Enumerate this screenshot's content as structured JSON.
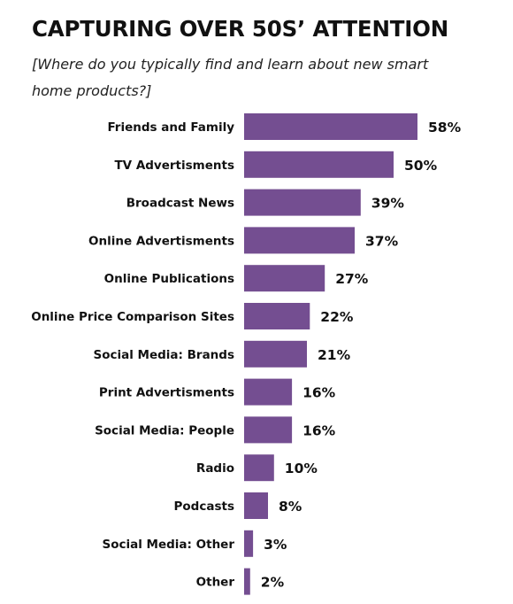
{
  "title": "CAPTURING OVER 50S’ ATTENTION",
  "subtitle": "[Where do you typically find and learn about new smart home products?]",
  "colors": {
    "bar": "#744e91",
    "text": "#111111",
    "background": "#ffffff"
  },
  "chart_data": {
    "type": "bar",
    "orientation": "horizontal",
    "title": "CAPTURING OVER 50S’ ATTENTION",
    "subtitle": "[Where do you typically find and learn about new smart home products?]",
    "categories": [
      "Friends and Family",
      "TV Advertisments",
      "Broadcast News",
      "Online Advertisments",
      "Online Publications",
      "Online Price Comparison Sites",
      "Social Media: Brands",
      "Print Advertisments",
      "Social Media: People",
      "Radio",
      "Podcasts",
      "Social Media: Other",
      "Other"
    ],
    "values": [
      58,
      50,
      39,
      37,
      27,
      22,
      21,
      16,
      16,
      10,
      8,
      3,
      2
    ],
    "value_labels": [
      "58%",
      "50%",
      "39%",
      "37%",
      "27%",
      "22%",
      "21%",
      "16%",
      "16%",
      "10%",
      "8%",
      "3%",
      "2%"
    ],
    "unit": "%",
    "xlim": [
      0,
      58
    ],
    "grid": false,
    "legend": "none"
  }
}
